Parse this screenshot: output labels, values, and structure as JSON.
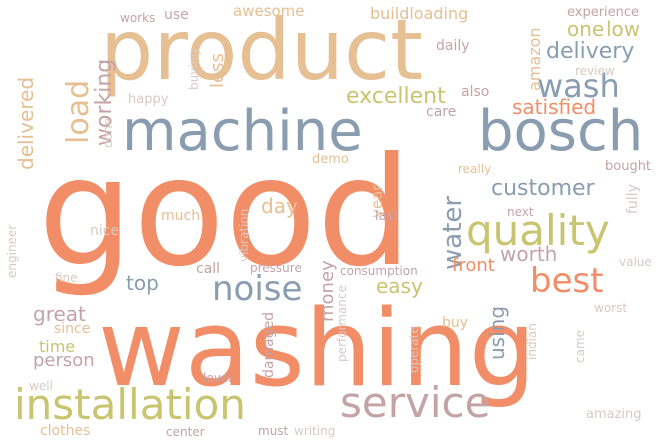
{
  "palette": {
    "coral": "#f28e67",
    "sand": "#e6bf93",
    "slate": "#8a9db0",
    "olive": "#c9c46f",
    "mauve": "#c4a3a7",
    "pale": "#d9c9c3"
  },
  "words": [
    {
      "text": "good",
      "color": "coral"
    },
    {
      "text": "washing",
      "color": "coral"
    },
    {
      "text": "product",
      "color": "sand"
    },
    {
      "text": "machine",
      "color": "slate"
    },
    {
      "text": "bosch",
      "color": "slate"
    },
    {
      "text": "installation",
      "color": "olive"
    },
    {
      "text": "service",
      "color": "mauve"
    },
    {
      "text": "quality",
      "color": "olive"
    },
    {
      "text": "noise",
      "color": "slate"
    },
    {
      "text": "best",
      "color": "coral"
    },
    {
      "text": "wash",
      "color": "slate"
    },
    {
      "text": "water",
      "color": "slate"
    },
    {
      "text": "load",
      "color": "sand"
    },
    {
      "text": "customer",
      "color": "slate"
    },
    {
      "text": "delivery",
      "color": "slate"
    },
    {
      "text": "excellent",
      "color": "olive"
    },
    {
      "text": "satisfied",
      "color": "coral"
    },
    {
      "text": "working",
      "color": "mauve"
    },
    {
      "text": "delivered",
      "color": "sand"
    },
    {
      "text": "one",
      "color": "olive"
    },
    {
      "text": "low",
      "color": "olive"
    },
    {
      "text": "worth",
      "color": "mauve"
    },
    {
      "text": "front",
      "color": "coral"
    },
    {
      "text": "easy",
      "color": "olive"
    },
    {
      "text": "money",
      "color": "mauve"
    },
    {
      "text": "top",
      "color": "slate"
    },
    {
      "text": "day",
      "color": "sand"
    },
    {
      "text": "great",
      "color": "mauve"
    },
    {
      "text": "person",
      "color": "mauve"
    },
    {
      "text": "time",
      "color": "olive"
    },
    {
      "text": "using",
      "color": "slate"
    },
    {
      "text": "less",
      "color": "sand"
    },
    {
      "text": "buildloading",
      "color": "sand"
    },
    {
      "text": "awesome",
      "color": "sand"
    },
    {
      "text": "amazon",
      "color": "sand"
    },
    {
      "text": "experience",
      "color": "mauve"
    },
    {
      "text": "daily",
      "color": "mauve"
    },
    {
      "text": "also",
      "color": "mauve"
    },
    {
      "text": "care",
      "color": "mauve"
    },
    {
      "text": "happy",
      "color": "pale"
    },
    {
      "text": "buying",
      "color": "pale"
    },
    {
      "text": "review",
      "color": "pale"
    },
    {
      "text": "works",
      "color": "mauve"
    },
    {
      "text": "use",
      "color": "mauve"
    },
    {
      "text": "done",
      "color": "pale"
    },
    {
      "text": "demo",
      "color": "sand"
    },
    {
      "text": "bought",
      "color": "mauve"
    },
    {
      "text": "really",
      "color": "sand"
    },
    {
      "text": "fully",
      "color": "pale"
    },
    {
      "text": "year",
      "color": "sand"
    },
    {
      "text": "last",
      "color": "mauve"
    },
    {
      "text": "next",
      "color": "mauve"
    },
    {
      "text": "much",
      "color": "sand"
    },
    {
      "text": "nice",
      "color": "pale"
    },
    {
      "text": "engineer",
      "color": "pale"
    },
    {
      "text": "vibration",
      "color": "pale"
    },
    {
      "text": "call",
      "color": "mauve"
    },
    {
      "text": "pressure",
      "color": "mauve"
    },
    {
      "text": "consumption",
      "color": "mauve"
    },
    {
      "text": "fine",
      "color": "pale"
    },
    {
      "text": "value",
      "color": "pale"
    },
    {
      "text": "since",
      "color": "sand"
    },
    {
      "text": "performance",
      "color": "pale"
    },
    {
      "text": "operate",
      "color": "pale"
    },
    {
      "text": "buy",
      "color": "sand"
    },
    {
      "text": "indian",
      "color": "pale"
    },
    {
      "text": "came",
      "color": "pale"
    },
    {
      "text": "worst",
      "color": "pale"
    },
    {
      "text": "damaged",
      "color": "mauve"
    },
    {
      "text": "level",
      "color": "mauve"
    },
    {
      "text": "well",
      "color": "pale"
    },
    {
      "text": "clothes",
      "color": "sand"
    },
    {
      "text": "center",
      "color": "mauve"
    },
    {
      "text": "must",
      "color": "mauve"
    },
    {
      "text": "writing",
      "color": "pale"
    },
    {
      "text": "amazing",
      "color": "pale"
    }
  ]
}
